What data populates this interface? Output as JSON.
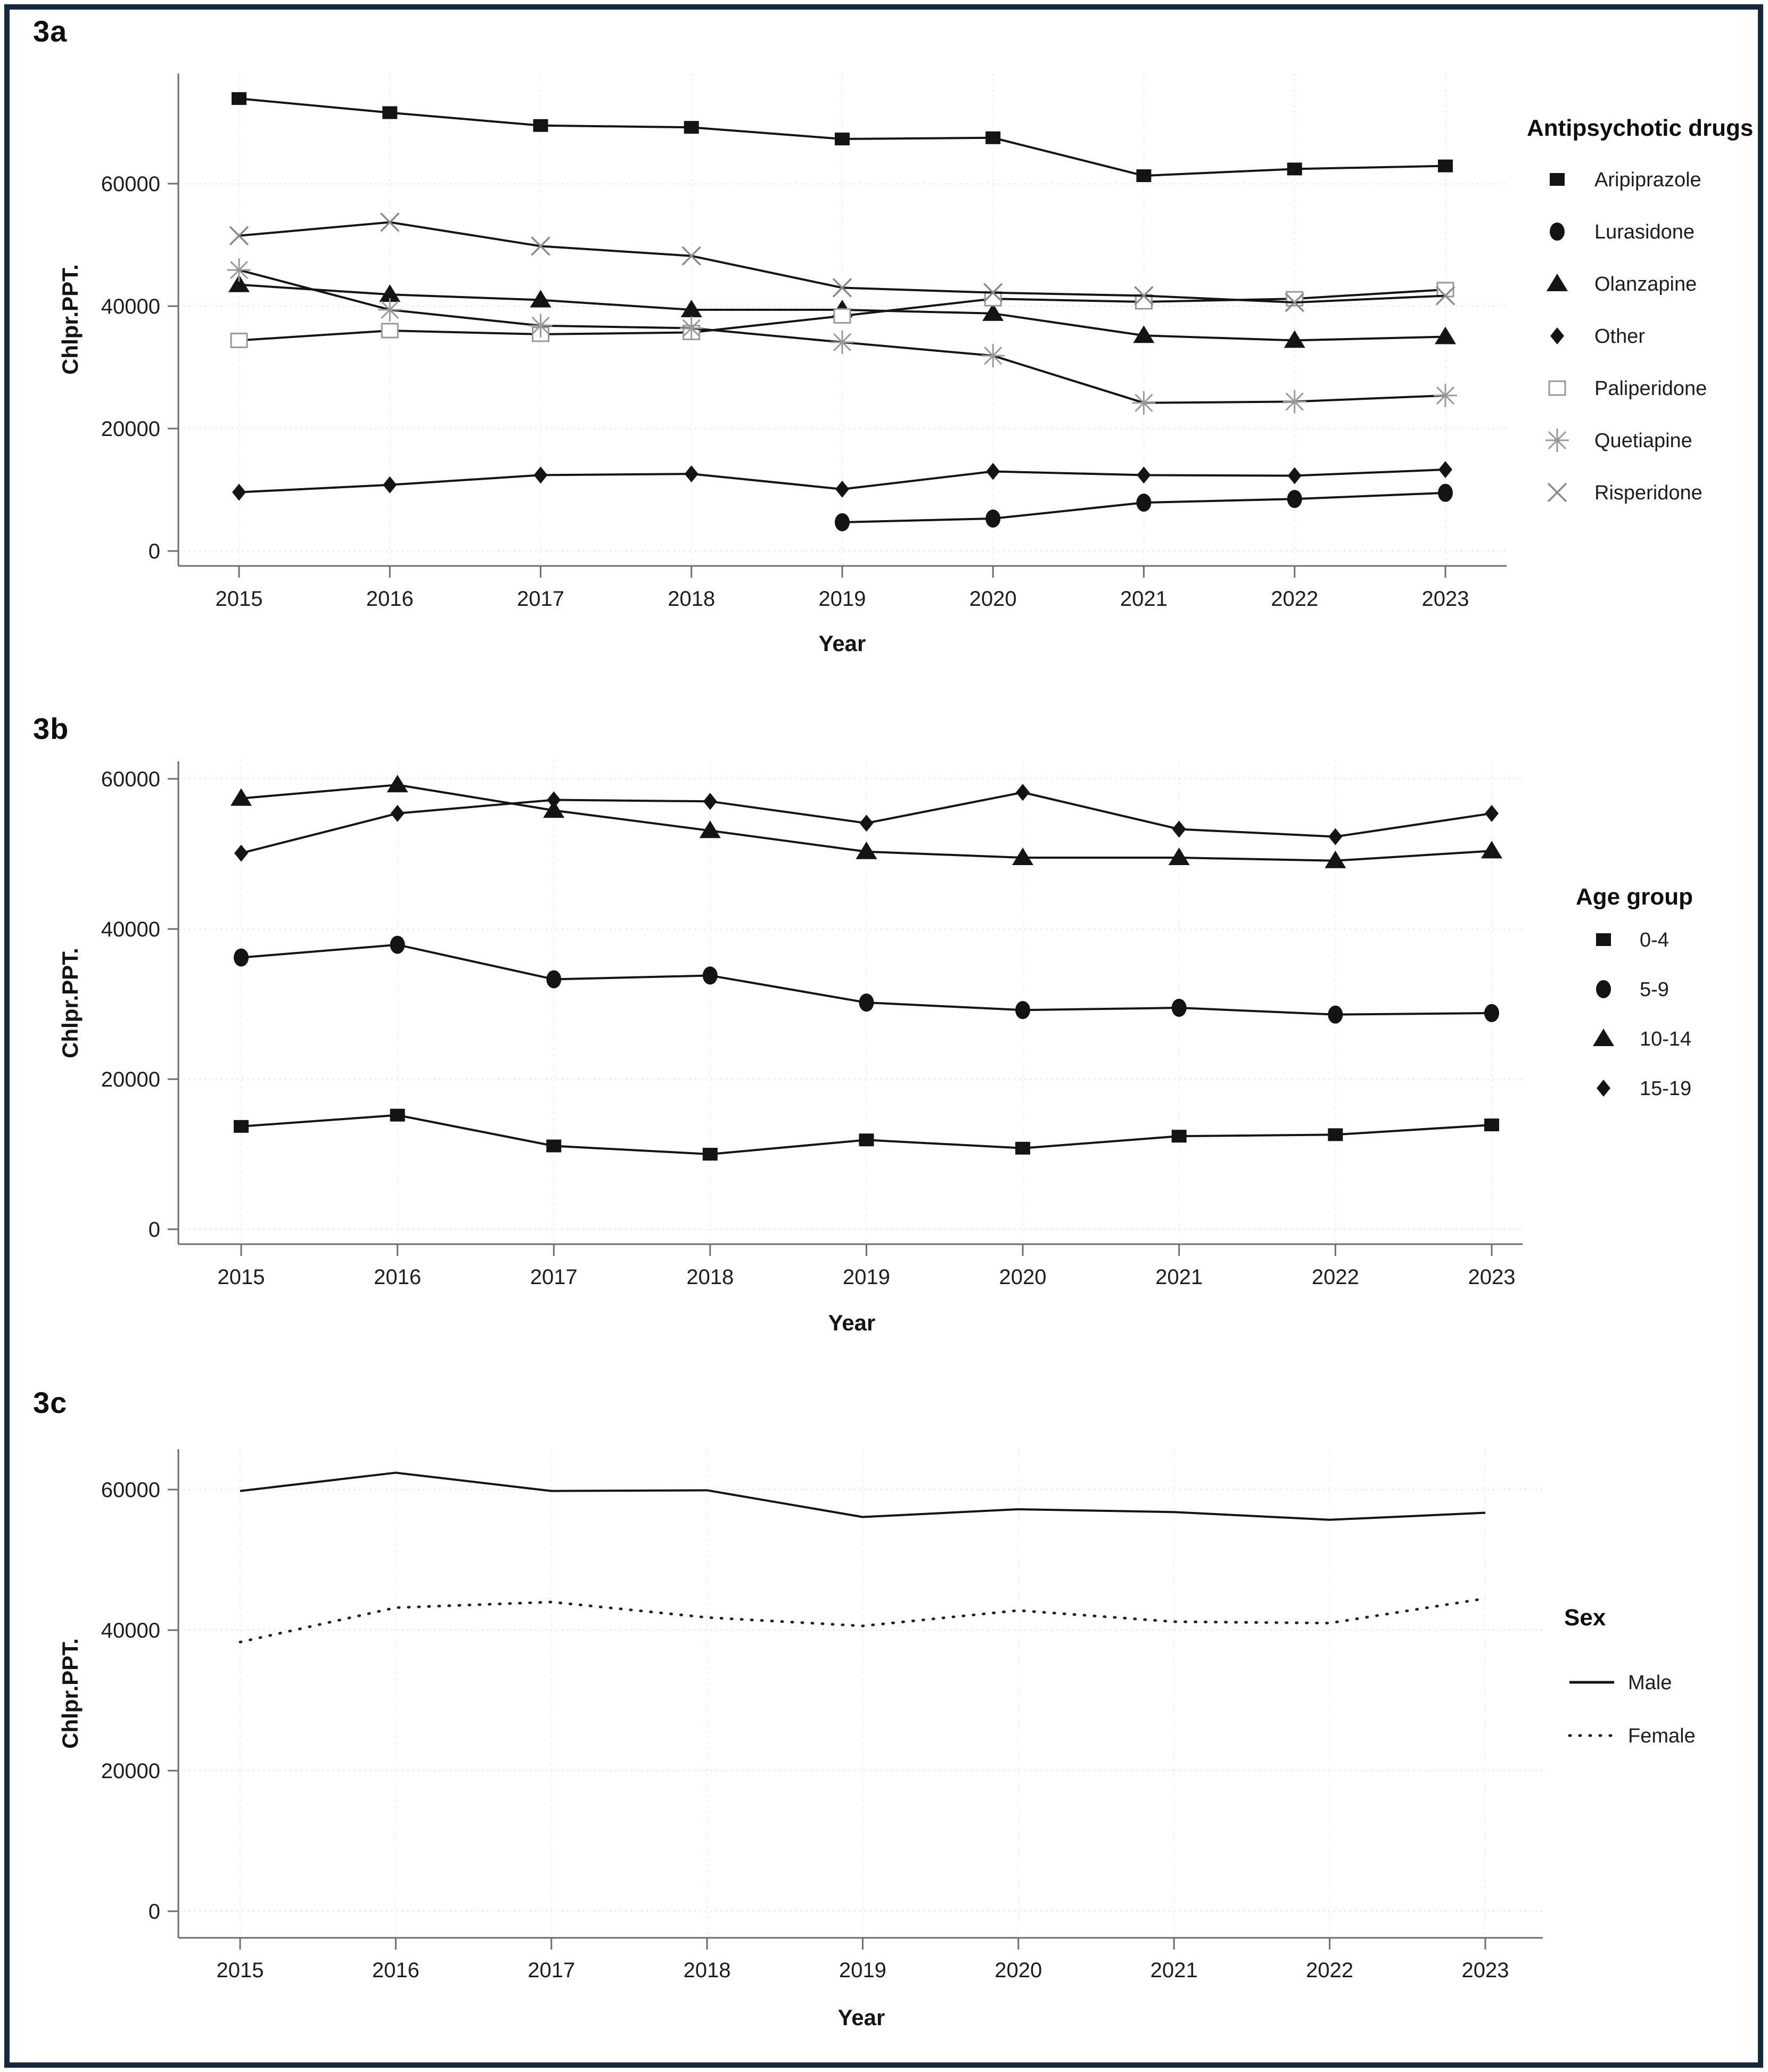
{
  "figure": {
    "border_color": "#16293b",
    "background_color": "#ffffff",
    "panel_labels": [
      "3a",
      "3b",
      "3c"
    ]
  },
  "chart_data": [
    {
      "type": "line",
      "panel_label": "3a",
      "xlabel": "Year",
      "ylabel": "Chlpr.PPT.",
      "x": [
        2015,
        2016,
        2017,
        2018,
        2019,
        2020,
        2021,
        2022,
        2023
      ],
      "yticks": [
        0,
        20000,
        40000,
        60000
      ],
      "ylim": [
        0,
        78000
      ],
      "grid": true,
      "legend_title": "Antipsychotic drugs",
      "legend_position": "right",
      "series": [
        {
          "name": "Aripiprazole",
          "marker": "filled-square",
          "line": "solid",
          "values": [
            73900,
            71600,
            69500,
            69200,
            67300,
            67500,
            61300,
            62400,
            62900
          ]
        },
        {
          "name": "Lurasidone",
          "marker": "filled-circle",
          "line": "solid",
          "values": [
            null,
            null,
            null,
            null,
            4700,
            5300,
            7900,
            8500,
            9500
          ]
        },
        {
          "name": "Olanzapine",
          "marker": "filled-triangle",
          "line": "solid",
          "values": [
            43500,
            41900,
            41000,
            39400,
            39400,
            38800,
            35200,
            34400,
            35000
          ]
        },
        {
          "name": "Other",
          "marker": "filled-diamond",
          "line": "solid",
          "values": [
            9600,
            10800,
            12400,
            12600,
            10100,
            13000,
            12400,
            12300,
            13300
          ]
        },
        {
          "name": "Paliperidone",
          "marker": "open-square",
          "line": "solid",
          "values": [
            34400,
            36000,
            35400,
            35700,
            38400,
            41200,
            40700,
            41200,
            42700
          ]
        },
        {
          "name": "Quetiapine",
          "marker": "asterisk",
          "line": "solid",
          "values": [
            45900,
            39400,
            36800,
            36400,
            34100,
            31900,
            24200,
            24400,
            25400
          ]
        },
        {
          "name": "Risperidone",
          "marker": "x-cross",
          "line": "solid",
          "values": [
            51500,
            53700,
            49800,
            48200,
            43000,
            42200,
            41700,
            40600,
            41700
          ]
        }
      ]
    },
    {
      "type": "line",
      "panel_label": "3b",
      "xlabel": "Year",
      "ylabel": "Chlpr.PPT.",
      "x": [
        2015,
        2016,
        2017,
        2018,
        2019,
        2020,
        2021,
        2022,
        2023
      ],
      "yticks": [
        0,
        20000,
        40000,
        60000
      ],
      "ylim": [
        0,
        62000
      ],
      "grid": true,
      "legend_title": "Age group",
      "legend_position": "right",
      "series": [
        {
          "name": "0-4",
          "marker": "filled-square",
          "line": "solid",
          "values": [
            13700,
            15200,
            11100,
            10000,
            11900,
            10800,
            12400,
            12600,
            13900
          ]
        },
        {
          "name": "5-9",
          "marker": "filled-circle",
          "line": "solid",
          "values": [
            36200,
            37900,
            33300,
            33800,
            30200,
            29200,
            29500,
            28600,
            28800
          ]
        },
        {
          "name": "10-14",
          "marker": "filled-triangle",
          "line": "solid",
          "values": [
            57400,
            59200,
            55800,
            53100,
            50300,
            49500,
            49500,
            49100,
            50400
          ]
        },
        {
          "name": "15-19",
          "marker": "filled-diamond",
          "line": "solid",
          "values": [
            50100,
            55400,
            57200,
            57000,
            54100,
            58200,
            53300,
            52300,
            55400
          ]
        }
      ]
    },
    {
      "type": "line",
      "panel_label": "3c",
      "xlabel": "Year",
      "ylabel": "Chlpr.PPT.",
      "x": [
        2015,
        2016,
        2017,
        2018,
        2019,
        2020,
        2021,
        2022,
        2023
      ],
      "yticks": [
        0,
        20000,
        40000,
        60000
      ],
      "ylim": [
        0,
        65000
      ],
      "grid": true,
      "legend_title": "Sex",
      "legend_position": "right",
      "series": [
        {
          "name": "Male",
          "marker": "none",
          "line": "solid",
          "values": [
            59800,
            62400,
            59800,
            59900,
            56100,
            57200,
            56800,
            55700,
            56700
          ]
        },
        {
          "name": "Female",
          "marker": "none",
          "line": "dotted",
          "values": [
            38300,
            43200,
            44000,
            41800,
            40600,
            42800,
            41200,
            41000,
            44500
          ]
        }
      ]
    }
  ]
}
